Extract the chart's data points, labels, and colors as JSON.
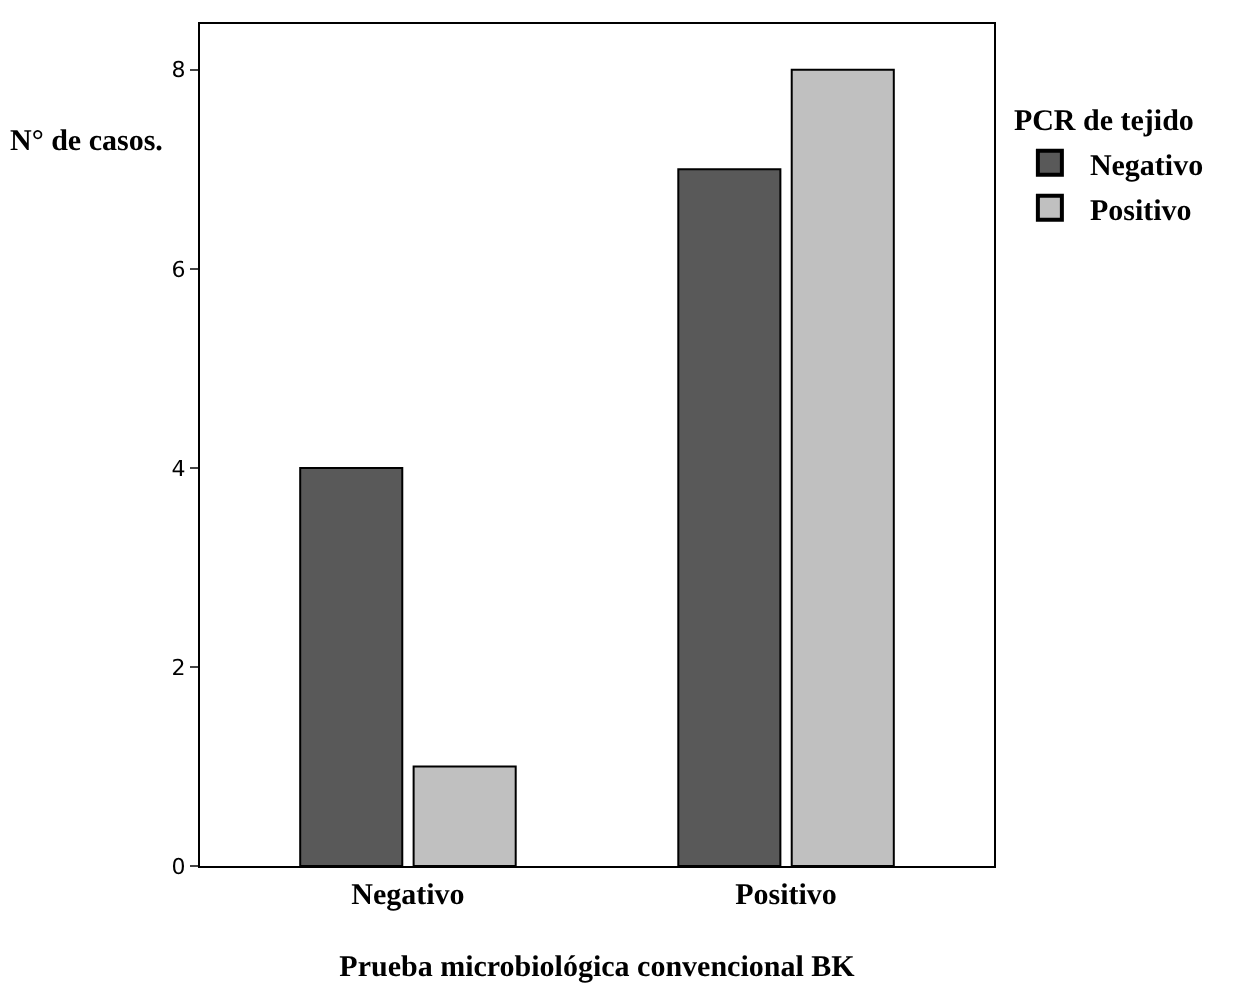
{
  "chart_data": {
    "type": "bar",
    "xlabel": "Prueba microbiológica convencional BK",
    "ylabel": "N° de casos.",
    "legend_title": "PCR de tejido",
    "categories": [
      "Negativo",
      "Positivo"
    ],
    "series": [
      {
        "name": "Negativo",
        "color": "#595959",
        "values": [
          4,
          7
        ]
      },
      {
        "name": "Positivo",
        "color": "#c0c0c0",
        "values": [
          1,
          8
        ]
      }
    ],
    "ylim": [
      0,
      8.46
    ],
    "yticks": [
      0,
      2,
      4,
      6,
      8
    ],
    "grid": false,
    "legend": "right"
  }
}
